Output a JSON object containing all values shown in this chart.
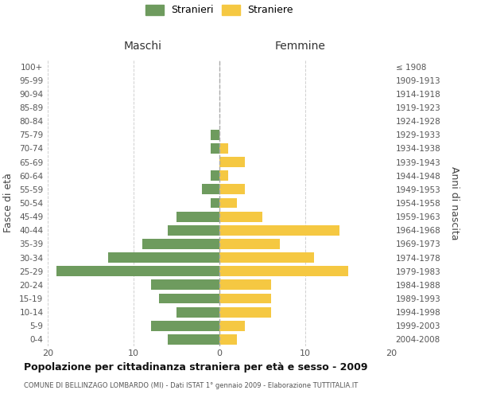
{
  "age_groups": [
    "0-4",
    "5-9",
    "10-14",
    "15-19",
    "20-24",
    "25-29",
    "30-34",
    "35-39",
    "40-44",
    "45-49",
    "50-54",
    "55-59",
    "60-64",
    "65-69",
    "70-74",
    "75-79",
    "80-84",
    "85-89",
    "90-94",
    "95-99",
    "100+"
  ],
  "birth_years": [
    "2004-2008",
    "1999-2003",
    "1994-1998",
    "1989-1993",
    "1984-1988",
    "1979-1983",
    "1974-1978",
    "1969-1973",
    "1964-1968",
    "1959-1963",
    "1954-1958",
    "1949-1953",
    "1944-1948",
    "1939-1943",
    "1934-1938",
    "1929-1933",
    "1924-1928",
    "1919-1923",
    "1914-1918",
    "1909-1913",
    "≤ 1908"
  ],
  "males": [
    6,
    8,
    5,
    7,
    8,
    19,
    13,
    9,
    6,
    5,
    1,
    2,
    1,
    0,
    1,
    1,
    0,
    0,
    0,
    0,
    0
  ],
  "females": [
    2,
    3,
    6,
    6,
    6,
    15,
    11,
    7,
    14,
    5,
    2,
    3,
    1,
    3,
    1,
    0,
    0,
    0,
    0,
    0,
    0
  ],
  "male_color": "#6e9b5e",
  "female_color": "#f5c842",
  "title": "Popolazione per cittadinanza straniera per età e sesso - 2009",
  "subtitle": "COMUNE DI BELLINZAGO LOMBARDO (MI) - Dati ISTAT 1° gennaio 2009 - Elaborazione TUTTITALIA.IT",
  "label_maschi": "Maschi",
  "label_femmine": "Femmine",
  "ylabel_left": "Fasce di età",
  "ylabel_right": "Anni di nascita",
  "legend_male": "Stranieri",
  "legend_female": "Straniere",
  "xlim": 20,
  "background_color": "#ffffff",
  "grid_color": "#d0d0d0"
}
